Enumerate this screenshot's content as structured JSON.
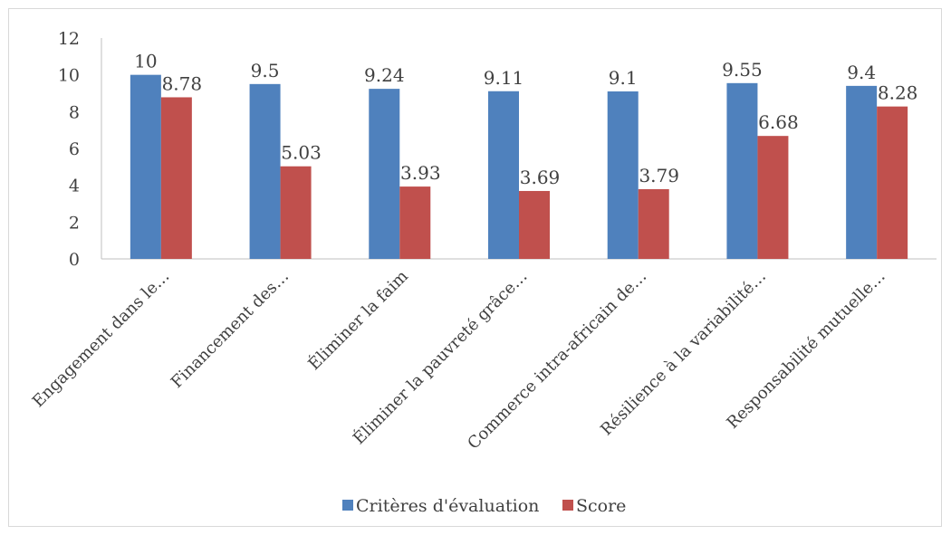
{
  "chart_data": {
    "type": "bar",
    "categories": [
      "Engagement dans le…",
      "Financement des…",
      "Éliminer la faim",
      "Éliminer la pauvreté grâce…",
      "Commerce intra-africain de…",
      "Résilience à la variabilité…",
      "Responsabilité mutuelle…"
    ],
    "series": [
      {
        "name": "Critères d'évaluation",
        "color": "#4F81BD",
        "values": [
          10,
          9.5,
          9.24,
          9.11,
          9.1,
          9.55,
          9.4
        ]
      },
      {
        "name": "Score",
        "color": "#C0504D",
        "values": [
          8.78,
          5.03,
          3.93,
          3.69,
          3.79,
          6.68,
          8.28
        ]
      }
    ],
    "ylim": [
      0,
      12
    ],
    "yticks": [
      0,
      2,
      4,
      6,
      8,
      10,
      12
    ],
    "grid": false,
    "legend": "bottom",
    "data_labels": true
  }
}
